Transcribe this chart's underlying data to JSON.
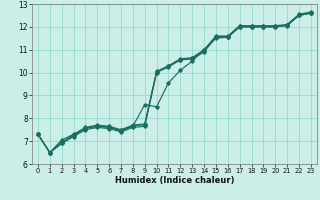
{
  "title": "",
  "xlabel": "Humidex (Indice chaleur)",
  "ylabel": "",
  "bg_color": "#cceee8",
  "grid_color": "#99ddcc",
  "line_color": "#1a6e60",
  "xlim": [
    -0.5,
    23.5
  ],
  "ylim": [
    6,
    13
  ],
  "yticks": [
    6,
    7,
    8,
    9,
    10,
    11,
    12,
    13
  ],
  "xticks": [
    0,
    1,
    2,
    3,
    4,
    5,
    6,
    7,
    8,
    9,
    10,
    11,
    12,
    13,
    14,
    15,
    16,
    17,
    18,
    19,
    20,
    21,
    22,
    23
  ],
  "series": [
    {
      "x": [
        0,
        1,
        2,
        3,
        4,
        5,
        6,
        7,
        8,
        9,
        10,
        11,
        12,
        13,
        14,
        15,
        16,
        17,
        18,
        19,
        20,
        21,
        22,
        23
      ],
      "y": [
        7.3,
        6.5,
        6.9,
        7.2,
        7.5,
        7.6,
        7.55,
        7.4,
        7.6,
        7.65,
        10.0,
        10.25,
        10.55,
        10.6,
        10.9,
        11.55,
        11.55,
        12.0,
        12.0,
        12.0,
        12.0,
        12.05,
        12.5,
        12.6
      ]
    },
    {
      "x": [
        0,
        1,
        2,
        3,
        4,
        5,
        6,
        7,
        8,
        9,
        10,
        11,
        12,
        13,
        14,
        15,
        16,
        17,
        18,
        19,
        20,
        21,
        22,
        23
      ],
      "y": [
        7.3,
        6.5,
        6.9,
        7.25,
        7.55,
        7.65,
        7.6,
        7.45,
        7.65,
        8.6,
        8.5,
        9.55,
        10.1,
        10.5,
        11.0,
        11.5,
        11.55,
        12.0,
        12.0,
        12.0,
        12.0,
        12.1,
        12.5,
        12.6
      ]
    },
    {
      "x": [
        0,
        1,
        2,
        3,
        4,
        5,
        6,
        7,
        8,
        9,
        10,
        11,
        12,
        13,
        14,
        15,
        16,
        17,
        18,
        19,
        20,
        21,
        22,
        23
      ],
      "y": [
        7.3,
        6.5,
        7.05,
        7.3,
        7.6,
        7.7,
        7.65,
        7.5,
        7.7,
        7.75,
        10.05,
        10.3,
        10.6,
        10.65,
        11.0,
        11.6,
        11.6,
        12.05,
        12.05,
        12.05,
        12.05,
        12.1,
        12.55,
        12.65
      ]
    },
    {
      "x": [
        0,
        1,
        2,
        3,
        4,
        5,
        6,
        7,
        8,
        9,
        10,
        11,
        12,
        13,
        14,
        15,
        16,
        17,
        18,
        19,
        20,
        21,
        22,
        23
      ],
      "y": [
        7.3,
        6.5,
        6.95,
        7.27,
        7.57,
        7.67,
        7.62,
        7.47,
        7.67,
        7.72,
        10.02,
        10.27,
        10.57,
        10.62,
        10.97,
        11.57,
        11.57,
        12.02,
        12.02,
        12.02,
        12.02,
        12.07,
        12.52,
        12.62
      ]
    }
  ]
}
